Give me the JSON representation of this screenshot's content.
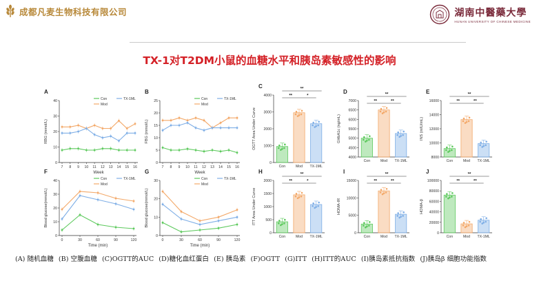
{
  "header": {
    "company": "成都凡麦生物科技有限公司",
    "university": "湖南中醫藥大學",
    "university_en": "HUNAN UNIVERSITY OF CHINESE MEDICINE",
    "title": "TX-1对T2DM小鼠的血糖水平和胰岛素敏感性的影响"
  },
  "colors": {
    "con": "#5cc95c",
    "mod": "#f3a868",
    "tx": "#7eaee6",
    "brand": "#b8893a",
    "univ": "#7a2a3a",
    "title": "#d42127"
  },
  "caption": [
    "(A) 随机血糖",
    "(B) 空腹血糖",
    "(C)OGTT的AUC",
    "(D)糖化血红蛋白",
    "(E) 胰岛素",
    "(F)OGTT",
    "(G)ITT",
    "(H)ITT的AUC",
    "(I)胰岛素抵抗指数",
    "(J)胰岛β 细胞功能指数"
  ],
  "chart_data": [
    {
      "panel": "A",
      "type": "line",
      "xlabel": "Week",
      "ylabel": "RBG (mmol/L)",
      "x": [
        7,
        8,
        9,
        10,
        11,
        12,
        13,
        14,
        15,
        16
      ],
      "xticks": [
        7,
        8,
        9,
        10,
        11,
        12,
        13,
        14,
        15,
        16
      ],
      "ylim": [
        0,
        40
      ],
      "yticks": [
        0,
        10,
        20,
        30,
        40
      ],
      "series": [
        {
          "name": "Con",
          "values": [
            8,
            9,
            9,
            8,
            8,
            9,
            9,
            8,
            8,
            8
          ]
        },
        {
          "name": "Mod",
          "values": [
            23,
            23,
            24,
            22,
            24,
            22,
            22,
            27,
            22,
            25
          ]
        },
        {
          "name": "TX-1ML",
          "values": [
            19,
            19,
            20,
            22,
            18,
            16,
            17,
            14,
            19,
            19
          ]
        }
      ],
      "legend": [
        "Con",
        "Mod",
        "TX-1ML"
      ]
    },
    {
      "panel": "B",
      "type": "line",
      "xlabel": "Week",
      "ylabel": "FBG (mmol/L)",
      "x": [
        7,
        8,
        9,
        10,
        11,
        12,
        13,
        14,
        15,
        16
      ],
      "xticks": [
        7,
        8,
        9,
        10,
        11,
        12,
        13,
        14,
        15,
        16
      ],
      "ylim": [
        0,
        25
      ],
      "yticks": [
        0,
        5,
        10,
        15,
        20,
        25
      ],
      "series": [
        {
          "name": "Con",
          "values": [
            6,
            5,
            5,
            5.5,
            5,
            4.5,
            5,
            4.5,
            5,
            4
          ]
        },
        {
          "name": "Mod",
          "values": [
            17,
            17,
            18,
            17,
            18,
            17,
            14,
            16,
            18,
            18
          ]
        },
        {
          "name": "TX-1ML",
          "values": [
            13,
            15,
            15,
            16,
            14,
            13,
            14,
            14,
            14,
            14
          ]
        }
      ],
      "legend": [
        "Con",
        "Mod",
        "TX-1ML"
      ]
    },
    {
      "panel": "C",
      "type": "bar",
      "ylabel": "OGTT Area Under Curve",
      "categories": [
        "Con",
        "Mod",
        "TX-1ML"
      ],
      "values": [
        950,
        2950,
        2300
      ],
      "ylim": [
        0,
        4000
      ],
      "yticks": [
        0,
        1000,
        2000,
        3000,
        4000
      ],
      "significance": [
        {
          "pair": [
            "Con",
            "Mod"
          ],
          "label": "**"
        },
        {
          "pair": [
            "Mod",
            "TX-1ML"
          ],
          "label": "*"
        },
        {
          "pair": [
            "Con",
            "TX-1ML"
          ],
          "label": "**"
        }
      ]
    },
    {
      "panel": "D",
      "type": "bar",
      "ylabel": "GHbA1c (ng/mL)",
      "categories": [
        "Con",
        "Mod",
        "TX-1ML"
      ],
      "values": [
        5000,
        6500,
        5250
      ],
      "ylim": [
        4000,
        7000
      ],
      "yticks": [
        4000,
        4500,
        5000,
        5500,
        6000,
        6500,
        7000
      ],
      "significance": [
        {
          "pair": [
            "Con",
            "Mod"
          ],
          "label": "**"
        },
        {
          "pair": [
            "Mod",
            "TX-1ML"
          ],
          "label": "**"
        },
        {
          "pair": [
            "Con",
            "TX-1ML"
          ],
          "label": "**"
        }
      ]
    },
    {
      "panel": "E",
      "type": "bar",
      "ylabel": "INS (mIU/mL)",
      "categories": [
        "Con",
        "Mod",
        "TX-1ML"
      ],
      "values": [
        9200,
        13300,
        9900
      ],
      "ylim": [
        8000,
        16000
      ],
      "yticks": [
        8000,
        10000,
        12000,
        14000,
        16000
      ],
      "significance": [
        {
          "pair": [
            "Con",
            "Mod"
          ],
          "label": "**"
        },
        {
          "pair": [
            "Mod",
            "TX-1ML"
          ],
          "label": "**"
        },
        {
          "pair": [
            "Con",
            "TX-1ML"
          ],
          "label": "**"
        }
      ]
    },
    {
      "panel": "F",
      "type": "line",
      "xlabel": "Time (min)",
      "ylabel": "Blood glucose(mmol/L)",
      "x": [
        0,
        30,
        60,
        90,
        120
      ],
      "xticks": [
        0,
        30,
        60,
        90,
        120
      ],
      "ylim": [
        0,
        40
      ],
      "yticks": [
        0,
        10,
        20,
        30,
        40
      ],
      "series": [
        {
          "name": "Con",
          "values": [
            4,
            15,
            8,
            6,
            5
          ]
        },
        {
          "name": "Mod",
          "values": [
            19,
            32,
            31,
            27,
            25
          ]
        },
        {
          "name": "TX-1ML",
          "values": [
            12,
            29,
            26,
            23,
            19
          ]
        }
      ],
      "legend": [
        "Con",
        "Mod",
        "TX-1ML"
      ]
    },
    {
      "panel": "G",
      "type": "line",
      "xlabel": "Time (min)",
      "ylabel": "Blood glucose(mmol/L)",
      "x": [
        0,
        30,
        60,
        90,
        120
      ],
      "xticks": [
        0,
        30,
        60,
        90,
        120
      ],
      "ylim": [
        0,
        30
      ],
      "yticks": [
        0,
        10,
        20,
        30
      ],
      "series": [
        {
          "name": "Con",
          "values": [
            7,
            2,
            3,
            4,
            6
          ]
        },
        {
          "name": "Mod",
          "values": [
            24,
            13,
            8,
            10,
            14
          ]
        },
        {
          "name": "TX-1ML",
          "values": [
            17,
            9,
            6,
            8,
            10
          ]
        }
      ],
      "legend": [
        "Con",
        "Mod",
        "TX-1ML"
      ]
    },
    {
      "panel": "H",
      "type": "bar",
      "ylabel": "ITT Area Under Curve",
      "categories": [
        "Con",
        "Mod",
        "TX-1ML"
      ],
      "values": [
        420,
        1450,
        1080
      ],
      "ylim": [
        0,
        2000
      ],
      "yticks": [
        0,
        500,
        1000,
        1500,
        2000
      ],
      "significance": [
        {
          "pair": [
            "Con",
            "Mod"
          ],
          "label": "**"
        },
        {
          "pair": [
            "Mod",
            "TX-1ML"
          ],
          "label": "*"
        },
        {
          "pair": [
            "Con",
            "TX-1ML"
          ],
          "label": "**"
        }
      ]
    },
    {
      "panel": "I",
      "type": "bar",
      "ylabel": "HOMA-IR",
      "categories": [
        "Con",
        "Mod",
        "TX-1ML"
      ],
      "values": [
        2500,
        12000,
        5300
      ],
      "ylim": [
        0,
        15000
      ],
      "yticks": [
        0,
        5000,
        10000,
        15000
      ],
      "significance": [
        {
          "pair": [
            "Con",
            "Mod"
          ],
          "label": "**"
        },
        {
          "pair": [
            "Mod",
            "TX-1ML"
          ],
          "label": "**"
        },
        {
          "pair": [
            "Con",
            "TX-1ML"
          ],
          "label": "**"
        }
      ]
    },
    {
      "panel": "J",
      "type": "bar",
      "ylabel": "HOMA-β",
      "categories": [
        "Con",
        "Mod",
        "TX-1ML"
      ],
      "values": [
        72000,
        17000,
        24000
      ],
      "ylim": [
        0,
        100000
      ],
      "yticks": [
        0,
        20000,
        40000,
        60000,
        80000,
        100000
      ],
      "significance": [
        {
          "pair": [
            "Con",
            "Mod"
          ],
          "label": "**"
        },
        {
          "pair": [
            "Mod",
            "TX-1ML"
          ],
          "label": "**"
        },
        {
          "pair": [
            "Con",
            "TX-1ML"
          ],
          "label": "**"
        }
      ]
    }
  ]
}
